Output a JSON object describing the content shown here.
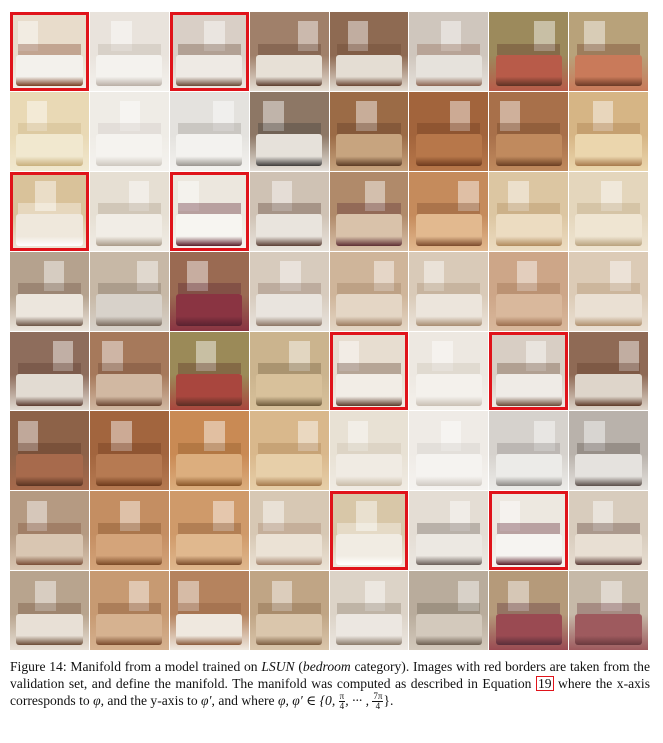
{
  "figure": {
    "grid_rows": 8,
    "grid_cols": 8,
    "tiles": [
      {
        "r": 0,
        "c": 0,
        "wall": "#e8dccb",
        "bed": "#f3f1ec",
        "accent": "#7a3f24",
        "red": true
      },
      {
        "r": 0,
        "c": 1,
        "wall": "#e9e3dc",
        "bed": "#f4f2ee",
        "accent": "#b9aea4",
        "red": false
      },
      {
        "r": 0,
        "c": 2,
        "wall": "#d9cfc6",
        "bed": "#eeeae4",
        "accent": "#6b4a36",
        "red": true
      },
      {
        "r": 0,
        "c": 3,
        "wall": "#a0806a",
        "bed": "#e7e0d6",
        "accent": "#5b3b2b",
        "red": false
      },
      {
        "r": 0,
        "c": 4,
        "wall": "#8e6a52",
        "bed": "#e4ddd3",
        "accent": "#6a4532",
        "red": false
      },
      {
        "r": 0,
        "c": 5,
        "wall": "#cfc6bd",
        "bed": "#e6e2dc",
        "accent": "#8c6450",
        "red": false
      },
      {
        "r": 0,
        "c": 6,
        "wall": "#9c8a5c",
        "bed": "#b85b49",
        "accent": "#5d3224",
        "red": false
      },
      {
        "r": 0,
        "c": 7,
        "wall": "#b8a27a",
        "bed": "#c97a5a",
        "accent": "#6b3a26",
        "red": false
      },
      {
        "r": 1,
        "c": 0,
        "wall": "#e9d9b5",
        "bed": "#f1e8cf",
        "accent": "#c9b07d",
        "red": false
      },
      {
        "r": 1,
        "c": 1,
        "wall": "#efece6",
        "bed": "#f5f3ef",
        "accent": "#cdc7bf",
        "red": false
      },
      {
        "r": 1,
        "c": 2,
        "wall": "#e4e2de",
        "bed": "#f3f2ef",
        "accent": "#9a9690",
        "red": false
      },
      {
        "r": 1,
        "c": 3,
        "wall": "#8d7765",
        "bed": "#e6e1da",
        "accent": "#3e3b3a",
        "red": false
      },
      {
        "r": 1,
        "c": 4,
        "wall": "#9b6b46",
        "bed": "#c7a47f",
        "accent": "#5b3a24",
        "red": false
      },
      {
        "r": 1,
        "c": 5,
        "wall": "#a2643c",
        "bed": "#b7774a",
        "accent": "#6e3a1e",
        "red": false
      },
      {
        "r": 1,
        "c": 6,
        "wall": "#a8704a",
        "bed": "#c08a5e",
        "accent": "#6b3e22",
        "red": false
      },
      {
        "r": 1,
        "c": 7,
        "wall": "#d6b585",
        "bed": "#ebd6ad",
        "accent": "#a7794b",
        "red": false
      },
      {
        "r": 2,
        "c": 0,
        "wall": "#d9c29a",
        "bed": "#efe8dc",
        "accent": "#ffffff",
        "red": true
      },
      {
        "r": 2,
        "c": 1,
        "wall": "#e6dfd3",
        "bed": "#f1ede6",
        "accent": "#a99a87",
        "red": false
      },
      {
        "r": 2,
        "c": 2,
        "wall": "#ece7de",
        "bed": "#f7f5f1",
        "accent": "#5a1e2a",
        "red": true
      },
      {
        "r": 2,
        "c": 3,
        "wall": "#cfc2b4",
        "bed": "#e9e4dd",
        "accent": "#5a3e33",
        "red": false
      },
      {
        "r": 2,
        "c": 4,
        "wall": "#b08a6a",
        "bed": "#d9c2aa",
        "accent": "#5e2e33",
        "red": false
      },
      {
        "r": 2,
        "c": 5,
        "wall": "#c58b5c",
        "bed": "#e2b98f",
        "accent": "#7c4a2c",
        "red": false
      },
      {
        "r": 2,
        "c": 6,
        "wall": "#dcc6a2",
        "bed": "#ecdcc1",
        "accent": "#b08a5c",
        "red": false
      },
      {
        "r": 2,
        "c": 7,
        "wall": "#e4d6bc",
        "bed": "#efe5d2",
        "accent": "#b9a27e",
        "red": false
      },
      {
        "r": 3,
        "c": 0,
        "wall": "#b5a28e",
        "bed": "#ece6dd",
        "accent": "#6c5444",
        "red": false
      },
      {
        "r": 3,
        "c": 1,
        "wall": "#c7b8a6",
        "bed": "#d8d2ca",
        "accent": "#7a6a5c",
        "red": false
      },
      {
        "r": 3,
        "c": 2,
        "wall": "#9a6a52",
        "bed": "#8a3442",
        "accent": "#5a2230",
        "red": false
      },
      {
        "r": 3,
        "c": 3,
        "wall": "#d7cbbd",
        "bed": "#e9e4de",
        "accent": "#8b7464",
        "red": false
      },
      {
        "r": 3,
        "c": 4,
        "wall": "#cfb59a",
        "bed": "#e4d6c5",
        "accent": "#9b7b5e",
        "red": false
      },
      {
        "r": 3,
        "c": 5,
        "wall": "#d9cab8",
        "bed": "#ece5dc",
        "accent": "#a78c70",
        "red": false
      },
      {
        "r": 3,
        "c": 6,
        "wall": "#cda688",
        "bed": "#d9b89c",
        "accent": "#9c6e4e",
        "red": false
      },
      {
        "r": 3,
        "c": 7,
        "wall": "#dccbb6",
        "bed": "#eae0d3",
        "accent": "#b0906c",
        "red": false
      },
      {
        "r": 4,
        "c": 0,
        "wall": "#8e6d5c",
        "bed": "#e2dbd2",
        "accent": "#5b3a2e",
        "red": false
      },
      {
        "r": 4,
        "c": 1,
        "wall": "#a6795b",
        "bed": "#d1b8a2",
        "accent": "#6b4530",
        "red": false
      },
      {
        "r": 4,
        "c": 2,
        "wall": "#9b8a58",
        "bed": "#a9463e",
        "accent": "#5a2e24",
        "red": false
      },
      {
        "r": 4,
        "c": 3,
        "wall": "#cbb48e",
        "bed": "#d8c19b",
        "accent": "#6e5a3a",
        "red": false
      },
      {
        "r": 4,
        "c": 4,
        "wall": "#e7ddd0",
        "bed": "#f2ede6",
        "accent": "#5b3b2b",
        "red": true
      },
      {
        "r": 4,
        "c": 5,
        "wall": "#ede8e1",
        "bed": "#f4f1ec",
        "accent": "#c9bfb3",
        "red": false
      },
      {
        "r": 4,
        "c": 6,
        "wall": "#d8cec4",
        "bed": "#efebe6",
        "accent": "#6b4a36",
        "red": true
      },
      {
        "r": 4,
        "c": 7,
        "wall": "#8f6a55",
        "bed": "#ded5ca",
        "accent": "#5e3a28",
        "red": false
      },
      {
        "r": 5,
        "c": 0,
        "wall": "#8d6248",
        "bed": "#a76a4c",
        "accent": "#5a3422",
        "red": false
      },
      {
        "r": 5,
        "c": 1,
        "wall": "#a2653e",
        "bed": "#b67a52",
        "accent": "#6e3a1c",
        "red": false
      },
      {
        "r": 5,
        "c": 2,
        "wall": "#c98a54",
        "bed": "#dcae7e",
        "accent": "#8a5628",
        "red": false
      },
      {
        "r": 5,
        "c": 3,
        "wall": "#d9b88c",
        "bed": "#e7cfa9",
        "accent": "#a57a4c",
        "red": false
      },
      {
        "r": 5,
        "c": 4,
        "wall": "#e8e1d4",
        "bed": "#f0ebe3",
        "accent": "#c9bca8",
        "red": false
      },
      {
        "r": 5,
        "c": 5,
        "wall": "#efebe6",
        "bed": "#f5f3f0",
        "accent": "#cfc9c2",
        "red": false
      },
      {
        "r": 5,
        "c": 6,
        "wall": "#d6d2cd",
        "bed": "#ecebe8",
        "accent": "#8c8884",
        "red": false
      },
      {
        "r": 5,
        "c": 7,
        "wall": "#b9b2ab",
        "bed": "#e5e2de",
        "accent": "#5a4e48",
        "red": false
      },
      {
        "r": 6,
        "c": 0,
        "wall": "#b59a82",
        "bed": "#d9c6b2",
        "accent": "#7a4e36",
        "red": false
      },
      {
        "r": 6,
        "c": 1,
        "wall": "#c48e62",
        "bed": "#d4a47a",
        "accent": "#7c4a26",
        "red": false
      },
      {
        "r": 6,
        "c": 2,
        "wall": "#cf9a6a",
        "bed": "#e0b88e",
        "accent": "#7c4c2a",
        "red": false
      },
      {
        "r": 6,
        "c": 3,
        "wall": "#d7c8b4",
        "bed": "#ebe2d5",
        "accent": "#a3826a",
        "red": false
      },
      {
        "r": 6,
        "c": 4,
        "wall": "#d8c7a8",
        "bed": "#f1ece3",
        "accent": "#ffffff",
        "red": true
      },
      {
        "r": 6,
        "c": 5,
        "wall": "#e4ddd4",
        "bed": "#ece8e2",
        "accent": "#6a5e58",
        "red": false
      },
      {
        "r": 6,
        "c": 6,
        "wall": "#ede8e0",
        "bed": "#f6f4f1",
        "accent": "#5a1e2a",
        "red": true
      },
      {
        "r": 6,
        "c": 7,
        "wall": "#d8ccbd",
        "bed": "#e8dfd3",
        "accent": "#5a3a34",
        "red": false
      },
      {
        "r": 7,
        "c": 0,
        "wall": "#b8a48e",
        "bed": "#e8e0d6",
        "accent": "#6c4c36",
        "red": false
      },
      {
        "r": 7,
        "c": 1,
        "wall": "#c79a72",
        "bed": "#d6b290",
        "accent": "#7a4a2c",
        "red": false
      },
      {
        "r": 7,
        "c": 2,
        "wall": "#b5835e",
        "bed": "#efe8df",
        "accent": "#8a5a3a",
        "red": false
      },
      {
        "r": 7,
        "c": 3,
        "wall": "#c0a585",
        "bed": "#dac6ac",
        "accent": "#7e5e40",
        "red": false
      },
      {
        "r": 7,
        "c": 4,
        "wall": "#dcd3c7",
        "bed": "#ece7e1",
        "accent": "#8a7a6a",
        "red": false
      },
      {
        "r": 7,
        "c": 5,
        "wall": "#b9ac9c",
        "bed": "#d3c9bc",
        "accent": "#6e6052",
        "red": false
      },
      {
        "r": 7,
        "c": 6,
        "wall": "#b59a7a",
        "bed": "#9a4a52",
        "accent": "#5a2e3a",
        "red": false
      },
      {
        "r": 7,
        "c": 7,
        "wall": "#c6b9a8",
        "bed": "#9e5a5e",
        "accent": "#6a3a3e",
        "red": false
      }
    ],
    "border_color": "#e0131a"
  },
  "caption": {
    "label": "Figure 14:",
    "part1": " Manifold from a model trained on ",
    "dataset": "LSUN",
    "part2": " (",
    "category": "bedroom",
    "part3": " category). Images with red borders are taken from the validation set, and define the manifold. The manifold was computed as described in Equation ",
    "equation_ref": "19",
    "part4": " where the x-axis corresponds to ",
    "phi": "φ",
    "part5": ", and the y-axis to ",
    "phi_prime": "φ′",
    "part6": ", and where ",
    "set_prefix": "φ, φ′ ∈ {0, ",
    "frac1_num": "π",
    "frac1_den": "4",
    "set_mid": ", ··· , ",
    "frac2_num": "7π",
    "frac2_den": "4",
    "set_suffix": "}."
  }
}
